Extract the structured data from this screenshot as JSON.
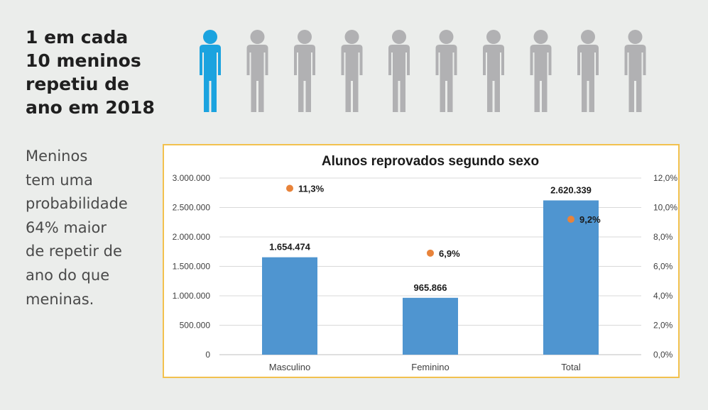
{
  "headline": {
    "lines": [
      "1 em cada",
      "10 meninos",
      "repetiu de",
      "ano em 2018"
    ]
  },
  "icons": {
    "figure_count": 10,
    "highlighted_count": 1,
    "highlight_color": "#1ba3df",
    "base_color": "#b1b1b3",
    "icon": "person-icon"
  },
  "side_text": {
    "lines": [
      "Meninos",
      "tem uma",
      "probabilidade",
      "64% maior",
      "de repetir de",
      "ano do que",
      "meninas."
    ]
  },
  "chart_data": {
    "type": "bar",
    "title": "Alunos reprovados segundo sexo",
    "categories": [
      "Masculino",
      "Feminino",
      "Total"
    ],
    "series": [
      {
        "type": "bar",
        "axis": "left",
        "color": "#4f95d0",
        "values": [
          1654474,
          965866,
          2620339
        ],
        "labels": [
          "1.654.474",
          "965.866",
          "2.620.339"
        ]
      },
      {
        "type": "scatter",
        "axis": "right",
        "color": "#e8833a",
        "values": [
          11.3,
          6.9,
          9.2
        ],
        "labels": [
          "11,3%",
          "6,9%",
          "9,2%"
        ]
      }
    ],
    "y_left": {
      "range": [
        0,
        3000000
      ],
      "ticks": [
        0,
        500000,
        1000000,
        1500000,
        2000000,
        2500000,
        3000000
      ],
      "tick_labels": [
        "0",
        "500.000",
        "1.000.000",
        "1.500.000",
        "2.000.000",
        "2.500.000",
        "3.000.000"
      ]
    },
    "y_right": {
      "range": [
        0,
        12
      ],
      "ticks": [
        0,
        2,
        4,
        6,
        8,
        10,
        12
      ],
      "tick_labels": [
        "0,0%",
        "2,0%",
        "4,0%",
        "6,0%",
        "8,0%",
        "10,0%",
        "12,0%"
      ]
    },
    "grid": true,
    "legend": "none",
    "border_color": "#f2c14e"
  }
}
